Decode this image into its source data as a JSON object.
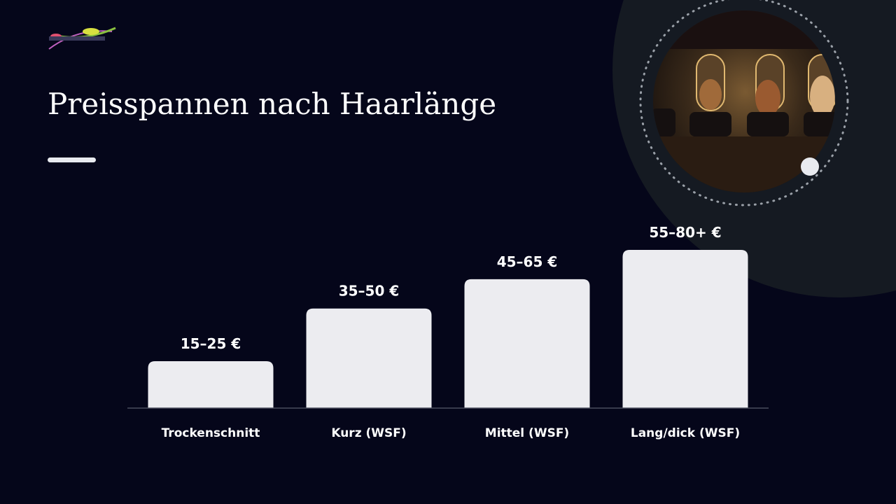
{
  "chart_data": {
    "type": "bar",
    "title": "Preisspannen nach Haarlänge",
    "categories": [
      "Trockenschnitt",
      "Kurz (WSF)",
      "Mittel (WSF)",
      "Lang/dick (WSF)"
    ],
    "values": [
      20,
      42.5,
      55,
      67.5
    ],
    "value_labels": [
      "15–25 €",
      "35–50 €",
      "45–65 €",
      "55–80+ €"
    ],
    "color": "#ececf0"
  }
}
